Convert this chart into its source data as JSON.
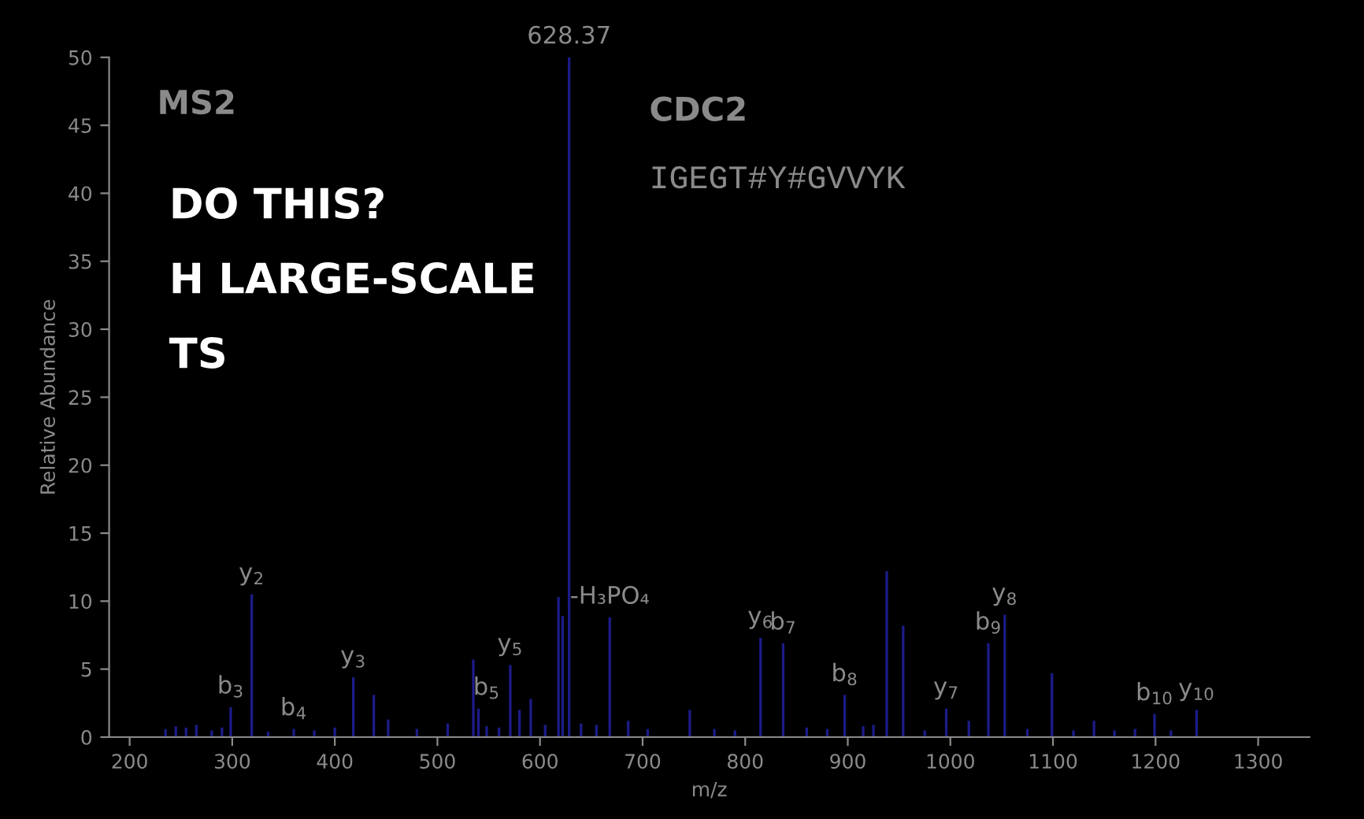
{
  "chart_data": {
    "type": "bar",
    "xlabel": "m/z",
    "ylabel": "Relative Abundance",
    "x": [
      235,
      245,
      255,
      265,
      280,
      290,
      298.5,
      319,
      335,
      360,
      380,
      400,
      418,
      438,
      452,
      480,
      510,
      535,
      540,
      548,
      560,
      571,
      580,
      591,
      605,
      618,
      622,
      628.37,
      640,
      655,
      668,
      686,
      705,
      746,
      770,
      790,
      815,
      837,
      860,
      880,
      897,
      915,
      925,
      938,
      954,
      975,
      996,
      1018,
      1037,
      1053,
      1075,
      1099,
      1120,
      1140,
      1160,
      1180,
      1199,
      1215,
      1240
    ],
    "values": [
      0.6,
      0.8,
      0.7,
      0.9,
      0.5,
      0.7,
      2.2,
      10.5,
      0.4,
      0.6,
      0.5,
      0.7,
      4.4,
      3.1,
      1.3,
      0.6,
      1.0,
      5.7,
      2.1,
      0.8,
      0.7,
      5.3,
      2.0,
      2.8,
      0.9,
      10.3,
      8.9,
      50,
      1.0,
      0.9,
      8.8,
      1.2,
      0.6,
      2.0,
      0.6,
      0.5,
      7.3,
      6.9,
      0.7,
      0.6,
      3.1,
      0.8,
      0.9,
      12.2,
      8.2,
      0.5,
      2.1,
      1.2,
      6.9,
      9.0,
      0.6,
      4.7,
      0.5,
      1.2,
      0.5,
      0.6,
      1.7,
      0.5,
      2.0
    ],
    "color": "#1c1c8a",
    "xlim": [
      180,
      1350
    ],
    "ylim": [
      0,
      50
    ],
    "xticks": [
      200,
      300,
      400,
      500,
      600,
      700,
      800,
      900,
      1000,
      1100,
      1200,
      1300
    ],
    "yticks": [
      0,
      5,
      10,
      15,
      20,
      25,
      30,
      35,
      40,
      45,
      50
    ],
    "grid": false,
    "legend": false,
    "annotations": [
      {
        "text": "b$_{3}$",
        "x": 298.5,
        "y": 2.2
      },
      {
        "text": "y$_{2}$",
        "x": 319,
        "y": 10.5
      },
      {
        "text": "b$_{4}$",
        "x": 360,
        "y": 0.6
      },
      {
        "text": "y$_{3}$",
        "x": 418,
        "y": 4.4
      },
      {
        "text": "b$_{5}$",
        "x": 548,
        "y": 2.1
      },
      {
        "text": "y$_{5}$",
        "x": 571,
        "y": 5.3
      },
      {
        "text": "628.37",
        "x": 628.37,
        "y": 50
      },
      {
        "text": "-H₃PO₄",
        "x": 668,
        "y": 8.8
      },
      {
        "text": "y$_{6}$",
        "x": 815,
        "y": 7.3
      },
      {
        "text": "b$_{7}$",
        "x": 837,
        "y": 6.9
      },
      {
        "text": "b$_{8}$",
        "x": 897,
        "y": 3.1
      },
      {
        "text": "y$_{7}$",
        "x": 996,
        "y": 2.1
      },
      {
        "text": "b$_{9}$",
        "x": 1037,
        "y": 6.9
      },
      {
        "text": "y$_{8}$",
        "x": 1053,
        "y": 9.0
      },
      {
        "text": "b$_{10}$",
        "x": 1199,
        "y": 1.7
      },
      {
        "text": "y$_{10}$",
        "x": 1240,
        "y": 2.0
      },
      "MS2",
      "CDC2",
      "IGEGT#Y#GVVYK",
      "DO THIS?",
      "H LARGE-SCALE",
      "TS"
    ]
  }
}
